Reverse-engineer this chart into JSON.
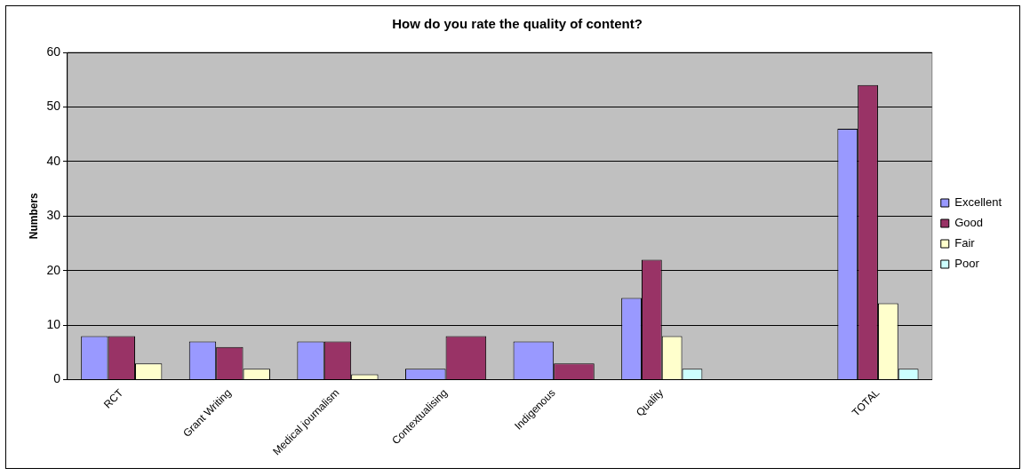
{
  "chart_data": {
    "type": "bar",
    "title": "How do you rate the quality of content?",
    "ylabel": "Numbers",
    "categories": [
      "RCT",
      "Grant Writing",
      "Medical journalism",
      "Contextualising",
      "Indigenous",
      "Quality",
      null,
      "TOTAL"
    ],
    "series": [
      {
        "name": "Excellent",
        "color": "#9999ff",
        "values": [
          8,
          7,
          7,
          2,
          7,
          15,
          null,
          46
        ]
      },
      {
        "name": "Good",
        "color": "#993366",
        "values": [
          8,
          6,
          7,
          8,
          3,
          22,
          null,
          54
        ]
      },
      {
        "name": "Fair",
        "color": "#ffffcc",
        "values": [
          3,
          2,
          1,
          null,
          null,
          8,
          null,
          14
        ]
      },
      {
        "name": "Poor",
        "color": "#ccffff",
        "values": [
          null,
          null,
          null,
          null,
          null,
          2,
          null,
          2
        ]
      }
    ],
    "ylim": [
      0,
      60
    ],
    "yticks": [
      0,
      10,
      20,
      30,
      40,
      50,
      60
    ],
    "grid": "y",
    "legend": "right"
  }
}
